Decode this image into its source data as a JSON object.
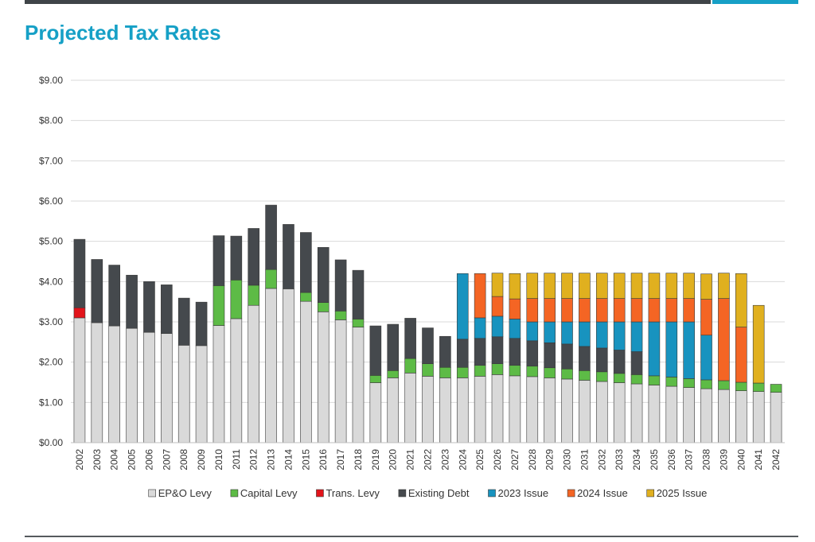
{
  "page": {
    "title": "Projected Tax Rates"
  },
  "colors": {
    "header_bar": "#3f4448",
    "header_accent": "#16a0c6",
    "title": "#16a0c6",
    "grid": "#d9d9d9"
  },
  "chart_data": {
    "type": "bar",
    "stacked": true,
    "title": "",
    "xlabel": "",
    "ylabel": "",
    "ylim": [
      0,
      9
    ],
    "y_ticks": [
      "$0.00",
      "$1.00",
      "$2.00",
      "$3.00",
      "$4.00",
      "$5.00",
      "$6.00",
      "$7.00",
      "$8.00",
      "$9.00"
    ],
    "grid": true,
    "legend_position": "bottom",
    "categories": [
      "2002",
      "2003",
      "2004",
      "2005",
      "2006",
      "2007",
      "2008",
      "2009",
      "2010",
      "2011",
      "2012",
      "2013",
      "2014",
      "2015",
      "2016",
      "2017",
      "2018",
      "2019",
      "2020",
      "2021",
      "2022",
      "2023",
      "2024",
      "2025",
      "2026",
      "2027",
      "2028",
      "2029",
      "2030",
      "2031",
      "2032",
      "2033",
      "2034",
      "2035",
      "2036",
      "2037",
      "2038",
      "2039",
      "2040",
      "2041",
      "2042"
    ],
    "series": [
      {
        "name": "EP&O Levy",
        "color": "#d9d9d9",
        "values": [
          3.1,
          2.98,
          2.9,
          2.84,
          2.74,
          2.71,
          2.42,
          2.41,
          2.91,
          3.08,
          3.41,
          3.83,
          3.82,
          3.51,
          3.25,
          3.05,
          2.87,
          1.49,
          1.61,
          1.73,
          1.65,
          1.61,
          1.61,
          1.65,
          1.69,
          1.66,
          1.64,
          1.61,
          1.58,
          1.55,
          1.52,
          1.49,
          1.46,
          1.43,
          1.4,
          1.37,
          1.34,
          1.32,
          1.29,
          1.27,
          1.25
        ]
      },
      {
        "name": "Capital Levy",
        "color": "#5dbb46",
        "values": [
          0,
          0,
          0,
          0,
          0,
          0,
          0,
          0,
          0.99,
          0.96,
          0.5,
          0.47,
          0,
          0.22,
          0.23,
          0.22,
          0.2,
          0.18,
          0.18,
          0.36,
          0.31,
          0.26,
          0.26,
          0.27,
          0.27,
          0.26,
          0.26,
          0.25,
          0.25,
          0.24,
          0.24,
          0.23,
          0.23,
          0.23,
          0.23,
          0.22,
          0.22,
          0.22,
          0.21,
          0.21,
          0.2
        ]
      },
      {
        "name": "Trans. Levy",
        "color": "#e3141b",
        "values": [
          0.25,
          0,
          0,
          0,
          0,
          0,
          0,
          0,
          0,
          0,
          0,
          0,
          0,
          0,
          0,
          0,
          0,
          0,
          0,
          0,
          0,
          0,
          0,
          0,
          0,
          0,
          0,
          0,
          0,
          0,
          0,
          0,
          0,
          0,
          0,
          0,
          0,
          0,
          0,
          0,
          0
        ]
      },
      {
        "name": "Existing Debt",
        "color": "#45494d",
        "values": [
          1.7,
          1.57,
          1.51,
          1.32,
          1.26,
          1.21,
          1.17,
          1.08,
          1.24,
          1.09,
          1.41,
          1.6,
          1.6,
          1.49,
          1.37,
          1.27,
          1.21,
          1.23,
          1.15,
          1.0,
          0.89,
          0.77,
          0.7,
          0.67,
          0.67,
          0.67,
          0.63,
          0.62,
          0.62,
          0.6,
          0.59,
          0.58,
          0.57,
          0,
          0,
          0,
          0,
          0,
          0,
          0,
          0
        ]
      },
      {
        "name": "2023 Issue",
        "color": "#1893bf",
        "values": [
          0,
          0,
          0,
          0,
          0,
          0,
          0,
          0,
          0,
          0,
          0,
          0,
          0,
          0,
          0,
          0,
          0,
          0,
          0,
          0,
          0,
          0,
          1.63,
          0.51,
          0.51,
          0.48,
          0.47,
          0.52,
          0.55,
          0.61,
          0.65,
          0.7,
          0.74,
          1.34,
          1.37,
          1.41,
          1.11,
          0,
          0,
          0,
          0
        ]
      },
      {
        "name": "2024 Issue",
        "color": "#f46524",
        "values": [
          0,
          0,
          0,
          0,
          0,
          0,
          0,
          0,
          0,
          0,
          0,
          0,
          0,
          0,
          0,
          0,
          0,
          0,
          0,
          0,
          0,
          0,
          0,
          1.1,
          0.49,
          0.5,
          0.58,
          0.58,
          0.58,
          0.58,
          0.58,
          0.58,
          0.58,
          0.58,
          0.58,
          0.58,
          0.89,
          2.04,
          1.37,
          0,
          0
        ]
      },
      {
        "name": "2025 Issue",
        "color": "#e0b01f",
        "values": [
          0,
          0,
          0,
          0,
          0,
          0,
          0,
          0,
          0,
          0,
          0,
          0,
          0,
          0,
          0,
          0,
          0,
          0,
          0,
          0,
          0,
          0,
          0,
          0,
          0.58,
          0.63,
          0.63,
          0.63,
          0.63,
          0.63,
          0.63,
          0.63,
          0.63,
          0.63,
          0.63,
          0.63,
          0.63,
          0.63,
          1.33,
          1.93,
          0
        ]
      }
    ]
  }
}
